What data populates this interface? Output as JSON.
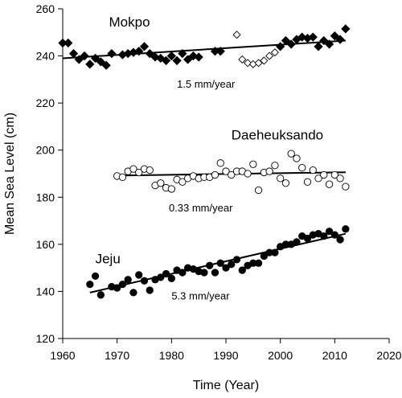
{
  "chart_data": {
    "type": "scatter",
    "title": "",
    "xlabel": "Time (Year)",
    "ylabel": "Mean Sea Level (cm)",
    "xlim": [
      1960,
      2020
    ],
    "ylim": [
      120,
      260
    ],
    "xticks": [
      1960,
      1970,
      1980,
      1990,
      2000,
      2010,
      2020
    ],
    "yticks": [
      120,
      140,
      160,
      180,
      200,
      220,
      240,
      260
    ],
    "grid": false,
    "legend": "none",
    "series": [
      {
        "name": "Mokpo",
        "rate_label": "1.5 mm/year",
        "marker": "filled-diamond",
        "color": "#000000",
        "x": [
          1960,
          1961,
          1962,
          1963,
          1964,
          1965,
          1966,
          1967,
          1968,
          1969,
          1971,
          1972,
          1973,
          1974,
          1975,
          1976,
          1977,
          1978,
          1979,
          1980,
          1981,
          1982,
          1983,
          1984,
          1985,
          1988,
          1989,
          2000,
          2001,
          2002,
          2003,
          2004,
          2005,
          2006,
          2007,
          2008,
          2009,
          2010,
          2011,
          2012
        ],
        "y": [
          245.5,
          245.5,
          241,
          238.5,
          240,
          236.5,
          239,
          237.5,
          236,
          241,
          240.5,
          241,
          241.5,
          242,
          244,
          241,
          239.5,
          239,
          238,
          240,
          238,
          241,
          238.5,
          240,
          239.5,
          242,
          242,
          244,
          246.5,
          245,
          247,
          248,
          247.5,
          248,
          244,
          246.5,
          245,
          248.5,
          247,
          251.5
        ],
        "trend": {
          "x": [
            1960,
            2012
          ],
          "y": [
            239,
            246.5
          ]
        }
      },
      {
        "name": "Mokpo-open",
        "marker": "open-diamond",
        "color": "#000000",
        "x": [
          1992,
          1993,
          1994,
          1995,
          1996,
          1997,
          1998,
          1999
        ],
        "y": [
          249,
          238.5,
          237,
          236.5,
          237,
          238,
          240,
          241.5
        ]
      },
      {
        "name": "Daeheuksando",
        "rate_label": "0.33 mm/year",
        "marker": "open-circle",
        "color": "#000000",
        "x": [
          1970,
          1971,
          1972,
          1973,
          1974,
          1975,
          1976,
          1977,
          1978,
          1979,
          1980,
          1981,
          1982,
          1983,
          1984,
          1985,
          1986,
          1987,
          1988,
          1989,
          1990,
          1991,
          1992,
          1993,
          1994,
          1995,
          1996,
          1997,
          1998,
          1999,
          2000,
          2001,
          2002,
          2003,
          2004,
          2005,
          2006,
          2007,
          2008,
          2009,
          2010,
          2011,
          2012
        ],
        "y": [
          189,
          188.5,
          191,
          192,
          190.5,
          192,
          191.5,
          185,
          186,
          184,
          183.5,
          187.5,
          186.5,
          188,
          189,
          188,
          188.5,
          188.5,
          189.5,
          194.5,
          191,
          189.5,
          191,
          191,
          190,
          194,
          183,
          190.5,
          191,
          193.5,
          188,
          186,
          198.5,
          196.5,
          192.5,
          186.5,
          191.5,
          188,
          189.5,
          185.5,
          189.5,
          188,
          184.5
        ],
        "trend": {
          "x": [
            1970,
            2012
          ],
          "y": [
            189.2,
            190.6
          ]
        }
      },
      {
        "name": "Jeju",
        "rate_label": "5.3 mm/year",
        "marker": "filled-circle",
        "color": "#000000",
        "x": [
          1965,
          1966,
          1967,
          1969,
          1970,
          1971,
          1972,
          1973,
          1974,
          1975,
          1976,
          1977,
          1978,
          1979,
          1980,
          1981,
          1982,
          1983,
          1984,
          1985,
          1986,
          1987,
          1988,
          1989,
          1990,
          1991,
          1992,
          1993,
          1994,
          1995,
          1996,
          1997,
          1998,
          1999,
          2000,
          2001,
          2002,
          2003,
          2004,
          2005,
          2006,
          2007,
          2008,
          2009,
          2010,
          2011,
          2012
        ],
        "y": [
          143,
          146.5,
          138.5,
          142,
          141.5,
          143,
          145,
          139.5,
          147,
          144.5,
          140.5,
          145,
          146,
          147.5,
          145.5,
          149,
          148,
          150,
          149.5,
          148.5,
          148,
          151,
          148,
          152,
          150,
          151.5,
          153.5,
          149,
          151,
          152,
          152,
          155,
          156.5,
          156.5,
          159,
          160,
          160,
          161,
          163.5,
          162.5,
          164,
          164.5,
          163.5,
          165.5,
          164,
          162,
          166.5
        ],
        "trend": {
          "x": [
            1965,
            2012
          ],
          "y": [
            139.5,
            164.5
          ]
        }
      }
    ]
  }
}
